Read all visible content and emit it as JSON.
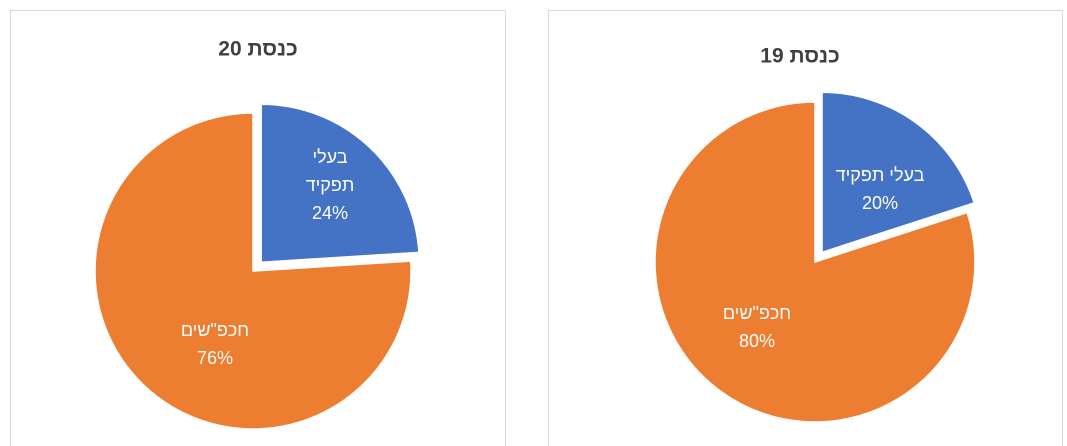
{
  "chart_data": [
    {
      "type": "pie",
      "title": "כנסת 20",
      "categories": [
        "בעלי תפקיד",
        "חכפ\"שים"
      ],
      "values": [
        24,
        76
      ],
      "value_labels": [
        "24%",
        "76%"
      ],
      "colors": [
        "#4472c4",
        "#ed7d31"
      ]
    },
    {
      "type": "pie",
      "title": "כנסת 19",
      "categories": [
        "בעלי תפקיד",
        "חכפ\"שים"
      ],
      "values": [
        20,
        80
      ],
      "value_labels": [
        "20%",
        "80%"
      ],
      "colors": [
        "#4472c4",
        "#ed7d31"
      ]
    }
  ]
}
